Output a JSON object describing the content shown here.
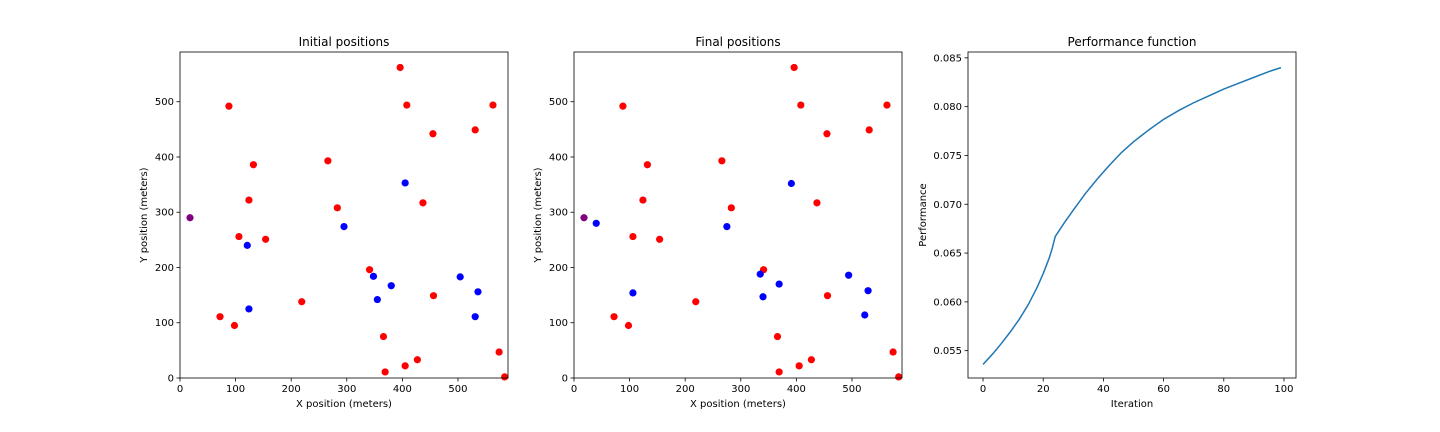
{
  "chart_data": [
    {
      "type": "scatter",
      "title": "Initial positions",
      "xlabel": "X position (meters)",
      "ylabel": "Y position (meters)",
      "xlim": [
        0,
        590
      ],
      "ylim": [
        0,
        590
      ],
      "xticks": [
        0,
        100,
        200,
        300,
        400,
        500
      ],
      "yticks": [
        0,
        100,
        200,
        300,
        400,
        500
      ],
      "grid": false,
      "series": [
        {
          "color": "#ff0000",
          "points": [
            [
              88,
              492
            ],
            [
              396,
              562
            ],
            [
              408,
              494
            ],
            [
              563,
              494
            ],
            [
              531,
              449
            ],
            [
              455,
              442
            ],
            [
              132,
              386
            ],
            [
              266,
              393
            ],
            [
              124,
              322
            ],
            [
              437,
              317
            ],
            [
              283,
              308
            ],
            [
              106,
              256
            ],
            [
              154,
              251
            ],
            [
              341,
              196
            ],
            [
              219,
              138
            ],
            [
              456,
              149
            ],
            [
              72,
              111
            ],
            [
              98,
              95
            ],
            [
              366,
              75
            ],
            [
              574,
              47
            ],
            [
              427,
              33
            ],
            [
              405,
              22
            ],
            [
              369,
              11
            ],
            [
              584,
              2
            ]
          ]
        },
        {
          "color": "#0000ff",
          "points": [
            [
              405,
              353
            ],
            [
              295,
              274
            ],
            [
              121,
              240
            ],
            [
              348,
              184
            ],
            [
              504,
              183
            ],
            [
              380,
              167
            ],
            [
              536,
              156
            ],
            [
              355,
              142
            ],
            [
              124,
              125
            ],
            [
              531,
              111
            ]
          ]
        },
        {
          "color": "#800080",
          "points": [
            [
              18,
              290
            ]
          ]
        }
      ]
    },
    {
      "type": "scatter",
      "title": "Final positions",
      "xlabel": "X position (meters)",
      "ylabel": "Y position (meters)",
      "xlim": [
        0,
        590
      ],
      "ylim": [
        0,
        590
      ],
      "xticks": [
        0,
        100,
        200,
        300,
        400,
        500
      ],
      "yticks": [
        0,
        100,
        200,
        300,
        400,
        500
      ],
      "grid": false,
      "series": [
        {
          "color": "#ff0000",
          "points": [
            [
              88,
              492
            ],
            [
              396,
              562
            ],
            [
              408,
              494
            ],
            [
              563,
              494
            ],
            [
              531,
              449
            ],
            [
              455,
              442
            ],
            [
              132,
              386
            ],
            [
              266,
              393
            ],
            [
              124,
              322
            ],
            [
              437,
              317
            ],
            [
              283,
              308
            ],
            [
              106,
              256
            ],
            [
              154,
              251
            ],
            [
              341,
              196
            ],
            [
              219,
              138
            ],
            [
              456,
              149
            ],
            [
              72,
              111
            ],
            [
              98,
              95
            ],
            [
              366,
              75
            ],
            [
              574,
              47
            ],
            [
              427,
              33
            ],
            [
              405,
              22
            ],
            [
              369,
              11
            ],
            [
              584,
              2
            ]
          ]
        },
        {
          "color": "#0000ff",
          "points": [
            [
              391,
              352
            ],
            [
              40,
              280
            ],
            [
              275,
              274
            ],
            [
              335,
              188
            ],
            [
              494,
              186
            ],
            [
              369,
              170
            ],
            [
              529,
              158
            ],
            [
              340,
              147
            ],
            [
              106,
              154
            ],
            [
              523,
              114
            ]
          ]
        },
        {
          "color": "#800080",
          "points": [
            [
              18,
              290
            ]
          ]
        }
      ]
    },
    {
      "type": "line",
      "title": "Performance function",
      "xlabel": "Iteration",
      "ylabel": "Performance",
      "xlim": [
        -5,
        104
      ],
      "ylim": [
        0.0522,
        0.0856
      ],
      "xticks": [
        0,
        20,
        40,
        60,
        80,
        100
      ],
      "yticks": [
        0.055,
        0.06,
        0.065,
        0.07,
        0.075,
        0.08,
        0.085
      ],
      "ytick_labels": [
        "0.055",
        "0.060",
        "0.065",
        "0.070",
        "0.075",
        "0.080",
        "0.085"
      ],
      "grid": false,
      "series": [
        {
          "color": "#1f77b4",
          "x": [
            0,
            3,
            6,
            9,
            12,
            15,
            18,
            20,
            22,
            23,
            24,
            27,
            30,
            34,
            38,
            42,
            46,
            50,
            55,
            60,
            65,
            70,
            75,
            80,
            85,
            90,
            95,
            99
          ],
          "y": [
            0.0536,
            0.0546,
            0.0557,
            0.0569,
            0.0582,
            0.0597,
            0.0615,
            0.0629,
            0.0645,
            0.0655,
            0.0667,
            0.0681,
            0.0694,
            0.0711,
            0.0726,
            0.074,
            0.0753,
            0.0764,
            0.0776,
            0.0787,
            0.0796,
            0.0804,
            0.0811,
            0.0818,
            0.0824,
            0.083,
            0.0836,
            0.084
          ]
        }
      ]
    }
  ]
}
